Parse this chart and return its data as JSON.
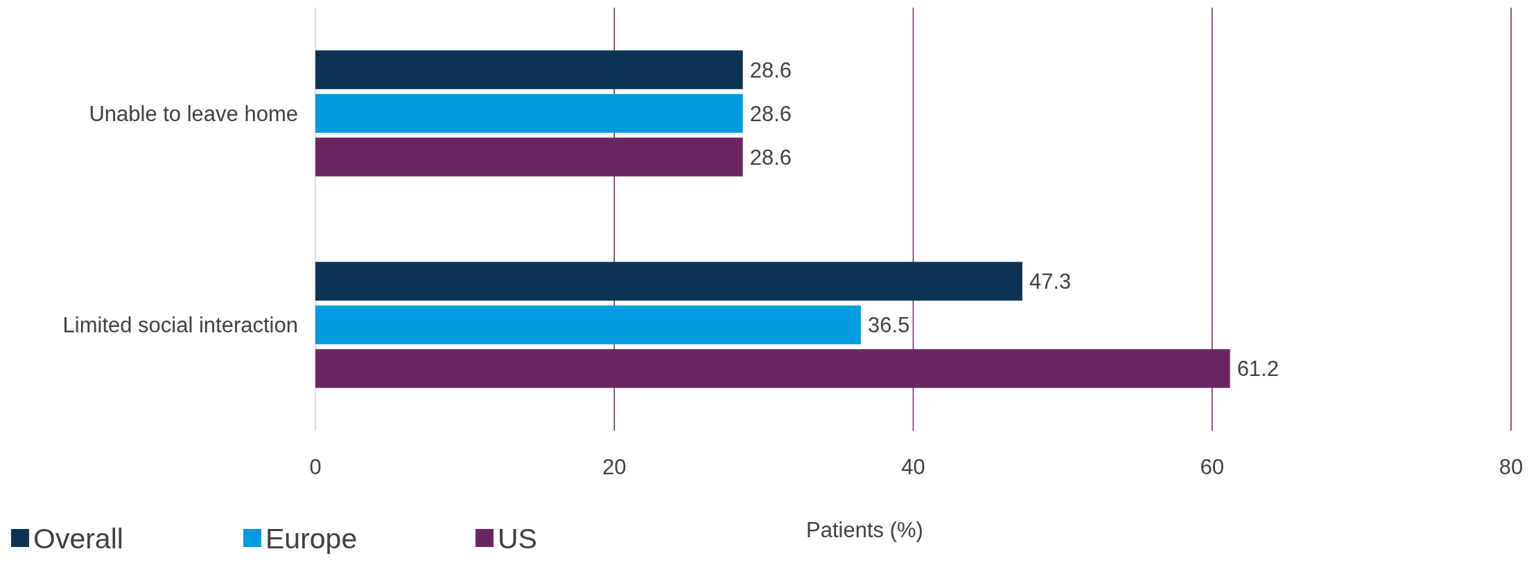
{
  "chart_data": {
    "type": "bar",
    "orientation": "horizontal",
    "categories": [
      "Unable to leave home",
      "Limited social interaction"
    ],
    "series": [
      {
        "name": "Overall",
        "color": "#0c3354",
        "values": [
          28.6,
          47.3
        ]
      },
      {
        "name": "Europe",
        "color": "#009ade",
        "values": [
          28.6,
          36.5
        ]
      },
      {
        "name": "US",
        "color": "#692762",
        "values": [
          28.6,
          61.2
        ]
      }
    ],
    "xlabel": "Patients (%)",
    "xlim": [
      0,
      80
    ],
    "xticks": [
      0,
      20,
      40,
      60,
      80
    ],
    "grid": "x",
    "legend": "bottom left",
    "data_labels": true
  }
}
